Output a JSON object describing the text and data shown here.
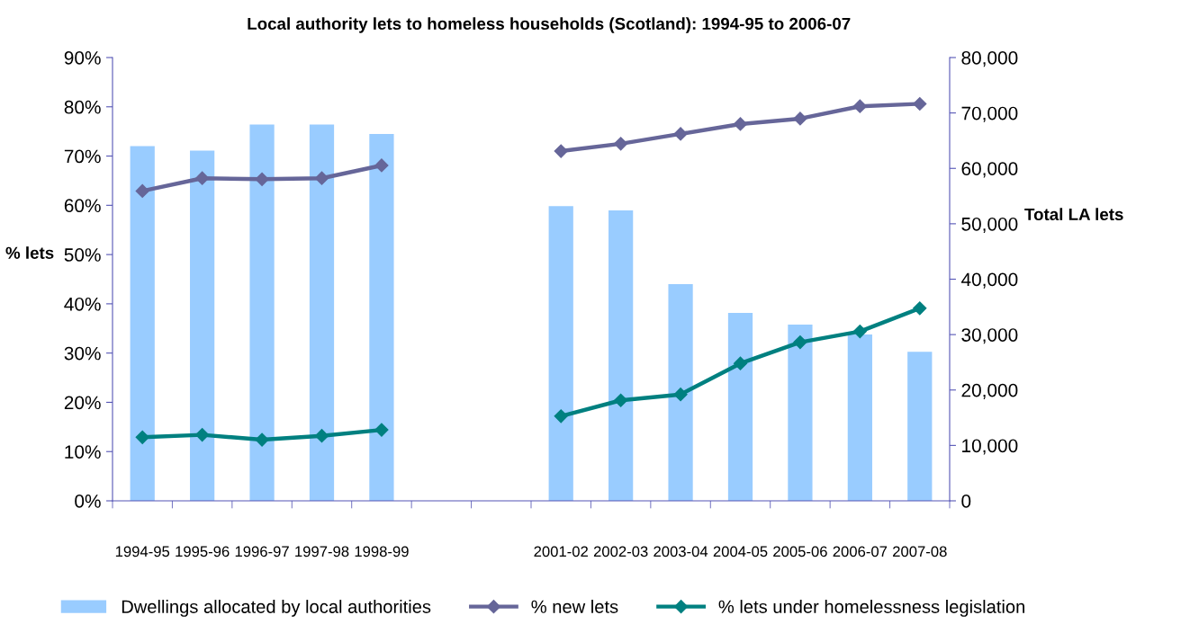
{
  "chart_data": {
    "type": "bar",
    "title": "Local authority lets to homeless households (Scotland): 1994-95 to 2006-07",
    "ylabel": "% lets",
    "y2label": "Total LA lets",
    "categories": [
      "1994-95",
      "1995-96",
      "1996-97",
      "1997-98",
      "1998-99",
      null,
      null,
      "2001-02",
      "2002-03",
      "2003-04",
      "2004-05",
      "2005-06",
      "2006-07",
      "2007-08"
    ],
    "series": [
      {
        "name": "Dwellings allocated by local authorities",
        "axis": "y2",
        "color": "#99ccff",
        "values": [
          64000,
          63200,
          67900,
          67900,
          66200,
          null,
          null,
          53200,
          52400,
          39100,
          33900,
          31800,
          30000,
          26900
        ]
      },
      {
        "name": "% new lets",
        "type": "line",
        "color": "#666699",
        "values": [
          62.9,
          65.5,
          65.3,
          65.5,
          68.1,
          null,
          null,
          71.0,
          72.5,
          74.5,
          76.5,
          77.6,
          80.1,
          80.6
        ]
      },
      {
        "name": "% lets under homelessness legislation",
        "type": "line",
        "color": "#008080",
        "values": [
          12.9,
          13.4,
          12.4,
          13.2,
          14.4,
          null,
          null,
          17.2,
          20.4,
          21.6,
          27.9,
          32.2,
          34.4,
          39.1
        ]
      }
    ],
    "ylim": [
      0,
      90
    ],
    "yticks": [
      {
        "value": 0,
        "label": "0%"
      },
      {
        "value": 10,
        "label": "10%"
      },
      {
        "value": 20,
        "label": "20%"
      },
      {
        "value": 30,
        "label": "30%"
      },
      {
        "value": 40,
        "label": "40%"
      },
      {
        "value": 50,
        "label": "50%"
      },
      {
        "value": 60,
        "label": "60%"
      },
      {
        "value": 70,
        "label": "70%"
      },
      {
        "value": 80,
        "label": "80%"
      },
      {
        "value": 90,
        "label": "90%"
      }
    ],
    "y2lim": [
      0,
      80000
    ],
    "y2ticks": [
      0,
      {
        "value": 10000,
        "label": "10,000"
      },
      {
        "value": 20000,
        "label": "20,000"
      },
      {
        "value": 30000,
        "label": "30,000"
      },
      {
        "value": 40000,
        "label": "40,000"
      },
      {
        "value": 50000,
        "label": "50,000"
      },
      {
        "value": 60000,
        "label": "60,000"
      },
      {
        "value": 70000,
        "label": "70,000"
      },
      {
        "value": 80000,
        "label": "80,000"
      }
    ],
    "marker": "diamond",
    "line_style": "solid",
    "legend": "bottom",
    "grid": false
  }
}
